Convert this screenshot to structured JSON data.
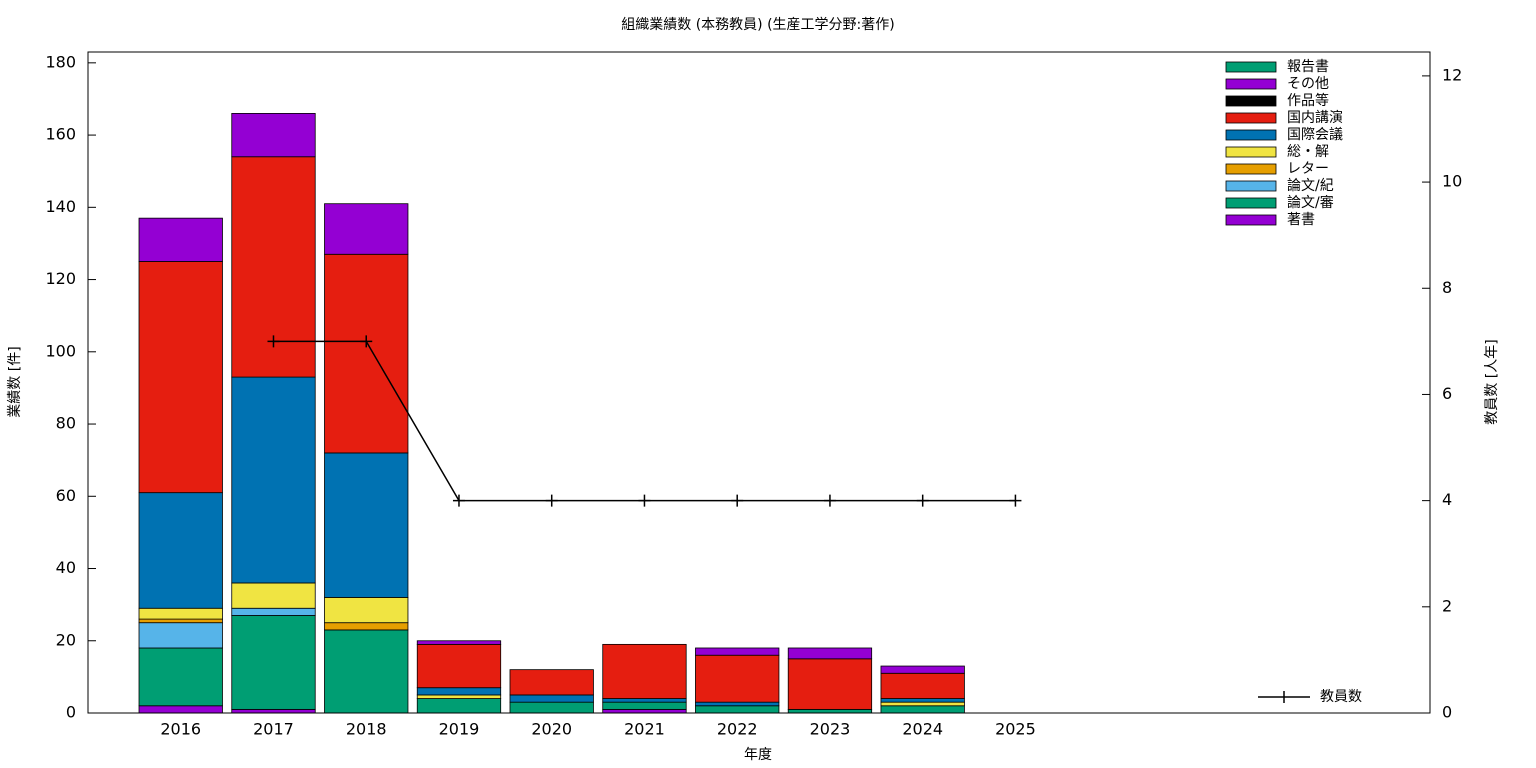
{
  "chart_data": {
    "type": "bar",
    "stacked": true,
    "title": "組織業績数 (本務教員) (生産工学分野:著作)",
    "x_label": "年度",
    "y_label": "業績数 [件]",
    "y2_label": "教員数 [人年]",
    "categories": [
      "2016",
      "2017",
      "2018",
      "2019",
      "2020",
      "2021",
      "2022",
      "2023",
      "2024",
      "2025"
    ],
    "series": [
      {
        "name": "著書",
        "color": "#9400d3",
        "values": [
          2,
          1,
          0,
          0,
          0,
          1,
          0,
          0,
          0,
          0
        ]
      },
      {
        "name": "論文/審",
        "color": "#009e73",
        "values": [
          16,
          26,
          23,
          4,
          3,
          2,
          2,
          1,
          2,
          0
        ]
      },
      {
        "name": "論文/紀",
        "color": "#56b4e9",
        "values": [
          7,
          2,
          0,
          0,
          0,
          0,
          0,
          0,
          0,
          0
        ]
      },
      {
        "name": "レター",
        "color": "#e69f00",
        "values": [
          1,
          0,
          2,
          0,
          0,
          0,
          0,
          0,
          0,
          0
        ]
      },
      {
        "name": "総・解",
        "color": "#f0e442",
        "values": [
          3,
          7,
          7,
          1,
          0,
          0,
          0,
          0,
          1,
          0
        ]
      },
      {
        "name": "国際会議",
        "color": "#0072b2",
        "values": [
          32,
          57,
          40,
          2,
          2,
          1,
          1,
          0,
          1,
          0
        ]
      },
      {
        "name": "国内講演",
        "color": "#e51e10",
        "values": [
          64,
          61,
          55,
          12,
          7,
          15,
          13,
          14,
          7,
          0
        ]
      },
      {
        "name": "作品等",
        "color": "#000000",
        "values": [
          0,
          0,
          0,
          0,
          0,
          0,
          0,
          0,
          0,
          0
        ]
      },
      {
        "name": "その他",
        "color": "#9400d3",
        "values": [
          12,
          12,
          14,
          1,
          0,
          0,
          2,
          3,
          2,
          0
        ]
      },
      {
        "name": "報告書",
        "color": "#009e73",
        "values": [
          0,
          0,
          0,
          0,
          0,
          0,
          0,
          0,
          0,
          0
        ]
      },
      {
        "name": "教員数",
        "type": "line",
        "axis": "y2",
        "color": "#000000",
        "values": [
          null,
          7,
          7,
          4,
          4,
          4,
          4,
          4,
          4,
          4
        ]
      }
    ],
    "ylim": [
      0,
      183
    ],
    "yticks": [
      0,
      20,
      40,
      60,
      80,
      100,
      120,
      140,
      160,
      180
    ],
    "y2lim": [
      0,
      12.45
    ],
    "y2ticks": [
      0,
      2,
      4,
      6,
      8,
      10,
      12
    ],
    "legend": "top-right"
  }
}
